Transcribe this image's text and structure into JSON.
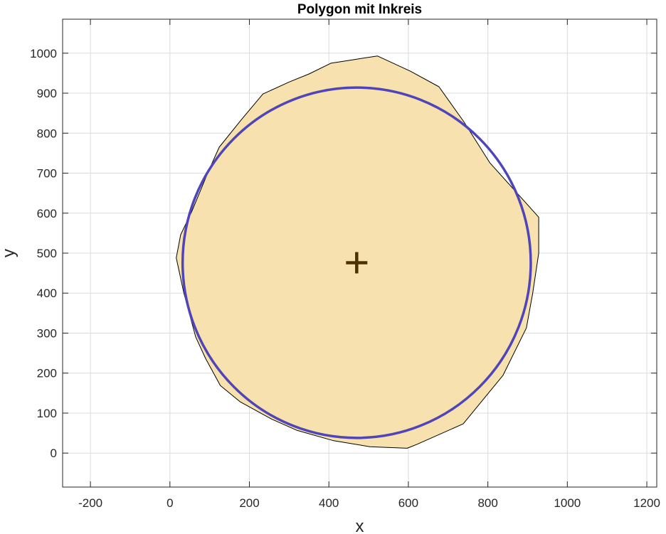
{
  "chart_data": {
    "type": "area",
    "title": "Polygon mit Inkreis",
    "xlabel": "x",
    "ylabel": "y",
    "xlim": [
      -270,
      1225
    ],
    "ylim": [
      -85,
      1085
    ],
    "grid": true,
    "xticks": [
      -200,
      0,
      200,
      400,
      600,
      800,
      1000,
      1200
    ],
    "yticks": [
      0,
      100,
      200,
      300,
      400,
      500,
      600,
      700,
      800,
      900,
      1000
    ],
    "xtick_labels": [
      "-200",
      "0",
      "200",
      "400",
      "600",
      "800",
      "1000",
      "1200"
    ],
    "ytick_labels": [
      "0",
      "100",
      "200",
      "300",
      "400",
      "500",
      "600",
      "700",
      "800",
      "900",
      "1000"
    ],
    "polygon": {
      "fill": "#f7e1ae",
      "edge": "#000000",
      "points": [
        [
          522,
          993
        ],
        [
          605,
          955
        ],
        [
          677,
          916
        ],
        [
          740,
          828
        ],
        [
          805,
          726
        ],
        [
          928,
          590
        ],
        [
          928,
          500
        ],
        [
          913,
          400
        ],
        [
          897,
          313
        ],
        [
          838,
          194
        ],
        [
          738,
          73
        ],
        [
          622,
          22
        ],
        [
          597,
          12
        ],
        [
          503,
          16
        ],
        [
          412,
          31
        ],
        [
          319,
          57
        ],
        [
          256,
          85
        ],
        [
          177,
          128
        ],
        [
          127,
          169
        ],
        [
          90,
          236
        ],
        [
          65,
          290
        ],
        [
          48,
          352
        ],
        [
          35,
          400
        ],
        [
          16,
          488
        ],
        [
          27,
          546
        ],
        [
          55,
          604
        ],
        [
          97,
          705
        ],
        [
          124,
          765
        ],
        [
          180,
          834
        ],
        [
          234,
          898
        ],
        [
          300,
          928
        ],
        [
          350,
          948
        ],
        [
          405,
          975
        ],
        [
          437,
          980
        ],
        [
          470,
          985
        ]
      ]
    },
    "incircle": {
      "center": [
        470,
        476
      ],
      "radius": 438,
      "color": "#4f45b8"
    },
    "center_marker": {
      "symbol": "+",
      "color": "#4d3200",
      "x": 470,
      "y": 476
    }
  }
}
